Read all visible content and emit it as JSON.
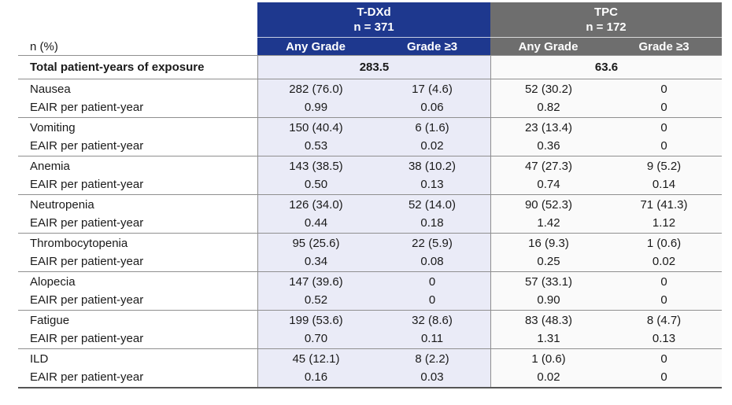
{
  "header": {
    "corner_label": "n (%)",
    "groups": [
      {
        "name": "T-DXd",
        "n_label": "n = 371",
        "subcols": [
          "Any Grade",
          "Grade ≥3"
        ]
      },
      {
        "name": "TPC",
        "n_label": "n = 172",
        "subcols": [
          "Any Grade",
          "Grade ≥3"
        ]
      }
    ]
  },
  "exposure_row": {
    "label": "Total patient-years of exposure",
    "tdxd_value": "283.5",
    "tpc_value": "63.6"
  },
  "eair_label": "EAIR per patient-year",
  "rows": [
    {
      "label": "Nausea",
      "sub_label": "EAIR per patient-year",
      "values": [
        "282 (76.0)",
        "17 (4.6)",
        "52 (30.2)",
        "0"
      ],
      "eair": [
        "0.99",
        "0.06",
        "0.82",
        "0"
      ]
    },
    {
      "label": "Vomiting",
      "sub_label": "EAIR per patient-year",
      "values": [
        "150 (40.4)",
        "6 (1.6)",
        "23 (13.4)",
        "0"
      ],
      "eair": [
        "0.53",
        "0.02",
        "0.36",
        "0"
      ]
    },
    {
      "label": "Anemia",
      "sub_label": "EAIR per patient-year",
      "values": [
        "143 (38.5)",
        "38 (10.2)",
        "47 (27.3)",
        "9 (5.2)"
      ],
      "eair": [
        "0.50",
        "0.13",
        "0.74",
        "0.14"
      ]
    },
    {
      "label": "Neutropenia",
      "sub_label": "EAIR per patient-year",
      "values": [
        "126 (34.0)",
        "52 (14.0)",
        "90 (52.3)",
        "71 (41.3)"
      ],
      "eair": [
        "0.44",
        "0.18",
        "1.42",
        "1.12"
      ]
    },
    {
      "label": "Thrombocytopenia",
      "sub_label": "EAIR per patient-year",
      "values": [
        "95 (25.6)",
        "22 (5.9)",
        "16 (9.3)",
        "1 (0.6)"
      ],
      "eair": [
        "0.34",
        "0.08",
        "0.25",
        "0.02"
      ]
    },
    {
      "label": "Alopecia",
      "sub_label": "EAIR per patient-year",
      "values": [
        "147 (39.6)",
        "0",
        "57 (33.1)",
        "0"
      ],
      "eair": [
        "0.52",
        "0",
        "0.90",
        "0"
      ]
    },
    {
      "label": "Fatigue",
      "sub_label": "EAIR per patient-year",
      "values": [
        "199 (53.6)",
        "32 (8.6)",
        "83 (48.3)",
        "8 (4.7)"
      ],
      "eair": [
        "0.70",
        "0.11",
        "1.31",
        "0.13"
      ]
    },
    {
      "label": "ILD",
      "sub_label": "EAIR per patient-year",
      "values": [
        "45 (12.1)",
        "8 (2.2)",
        "1 (0.6)",
        "0"
      ],
      "eair": [
        "0.16",
        "0.03",
        "0.02",
        "0"
      ]
    }
  ],
  "colors": {
    "tdxd_header": "#1e388e",
    "tpc_header": "#6e6e6e",
    "tdxd_body": "#eaebf7",
    "tpc_body": "#fafafa",
    "rule": "#8f8f8f"
  },
  "chart_data": {
    "type": "table",
    "title": "Adverse events: T-DXd vs TPC, n (%) and EAIR per patient-year",
    "columns": [
      "n (%)",
      "T-DXd Any Grade",
      "T-DXd Grade ≥3",
      "TPC Any Grade",
      "TPC Grade ≥3"
    ],
    "group_sizes": {
      "T-DXd": 371,
      "TPC": 172
    },
    "total_patient_years": {
      "T-DXd": 283.5,
      "TPC": 63.6
    },
    "rows": [
      [
        "Nausea",
        "282 (76.0)",
        "17 (4.6)",
        "52 (30.2)",
        "0"
      ],
      [
        "Nausea EAIR",
        "0.99",
        "0.06",
        "0.82",
        "0"
      ],
      [
        "Vomiting",
        "150 (40.4)",
        "6 (1.6)",
        "23 (13.4)",
        "0"
      ],
      [
        "Vomiting EAIR",
        "0.53",
        "0.02",
        "0.36",
        "0"
      ],
      [
        "Anemia",
        "143 (38.5)",
        "38 (10.2)",
        "47 (27.3)",
        "9 (5.2)"
      ],
      [
        "Anemia EAIR",
        "0.50",
        "0.13",
        "0.74",
        "0.14"
      ],
      [
        "Neutropenia",
        "126 (34.0)",
        "52 (14.0)",
        "90 (52.3)",
        "71 (41.3)"
      ],
      [
        "Neutropenia EAIR",
        "0.44",
        "0.18",
        "1.42",
        "1.12"
      ],
      [
        "Thrombocytopenia",
        "95 (25.6)",
        "22 (5.9)",
        "16 (9.3)",
        "1 (0.6)"
      ],
      [
        "Thrombocytopenia EAIR",
        "0.34",
        "0.08",
        "0.25",
        "0.02"
      ],
      [
        "Alopecia",
        "147 (39.6)",
        "0",
        "57 (33.1)",
        "0"
      ],
      [
        "Alopecia EAIR",
        "0.52",
        "0",
        "0.90",
        "0"
      ],
      [
        "Fatigue",
        "199 (53.6)",
        "32 (8.6)",
        "83 (48.3)",
        "8 (4.7)"
      ],
      [
        "Fatigue EAIR",
        "0.70",
        "0.11",
        "1.31",
        "0.13"
      ],
      [
        "ILD",
        "45 (12.1)",
        "8 (2.2)",
        "1 (0.6)",
        "0"
      ],
      [
        "ILD EAIR",
        "0.16",
        "0.03",
        "0.02",
        "0"
      ]
    ]
  }
}
